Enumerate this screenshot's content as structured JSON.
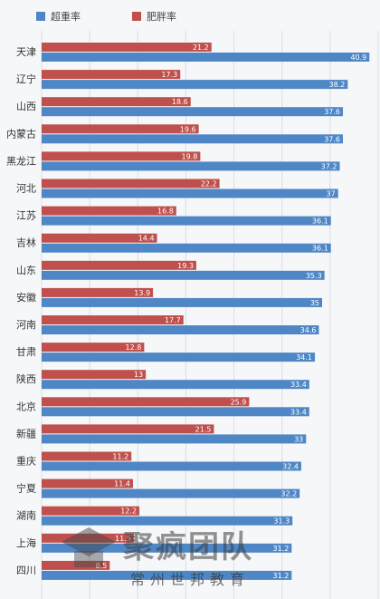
{
  "chart_data": {
    "type": "bar",
    "orientation": "horizontal",
    "categories": [
      "天津",
      "辽宁",
      "山西",
      "内蒙古",
      "黑龙江",
      "河北",
      "江苏",
      "吉林",
      "山东",
      "安徽",
      "河南",
      "甘肃",
      "陕西",
      "北京",
      "新疆",
      "重庆",
      "宁夏",
      "湖南",
      "上海",
      "四川"
    ],
    "series": [
      {
        "name": "超重率",
        "color": "#4f87c6",
        "values": [
          40.9,
          38.2,
          37.6,
          37.6,
          37.2,
          37,
          36.1,
          36.1,
          35.3,
          35,
          34.6,
          34.1,
          33.4,
          33.4,
          33,
          32.4,
          32.2,
          31.3,
          31.2,
          31.2
        ]
      },
      {
        "name": "肥胖率",
        "color": "#c0504d",
        "values": [
          21.2,
          17.3,
          18.6,
          19.6,
          19.8,
          22.2,
          16.8,
          14.4,
          19.3,
          13.9,
          17.7,
          12.8,
          13,
          25.9,
          21.5,
          11.2,
          11.4,
          12.2,
          11.5,
          8.5
        ]
      }
    ],
    "xlim": [
      0,
      42
    ],
    "grid": true,
    "legend_position": "top-left",
    "watermark": {
      "main": "聚疯团队",
      "sub": "常州世邦教育"
    }
  }
}
